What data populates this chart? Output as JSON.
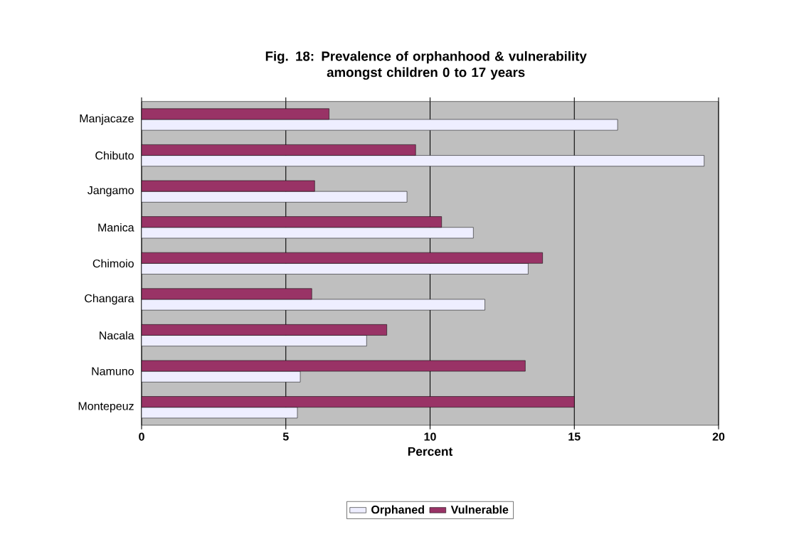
{
  "chart_data": {
    "type": "bar",
    "orientation": "horizontal",
    "title": "Fig. 18: Prevalence of orphanhood & vulnerability\namongst children 0 to 17 years",
    "xlabel": "Percent",
    "categories": [
      "Manjacaze",
      "Chibuto",
      "Jangamo",
      "Manica",
      "Chimoio",
      "Changara",
      "Nacala",
      "Namuno",
      "Montepeuz"
    ],
    "series": [
      {
        "name": "Orphaned",
        "color": "#eeeeff",
        "values": [
          16.5,
          19.5,
          9.2,
          11.5,
          13.4,
          11.9,
          7.8,
          5.5,
          5.4
        ]
      },
      {
        "name": "Vulnerable",
        "color": "#993366",
        "values": [
          6.5,
          9.5,
          6.0,
          10.4,
          13.9,
          5.9,
          8.5,
          13.3,
          15.0
        ]
      }
    ],
    "xlim": [
      0,
      20
    ],
    "xticks": [
      0,
      5,
      10,
      15,
      20
    ],
    "grid": "x",
    "legend": "bottom"
  }
}
